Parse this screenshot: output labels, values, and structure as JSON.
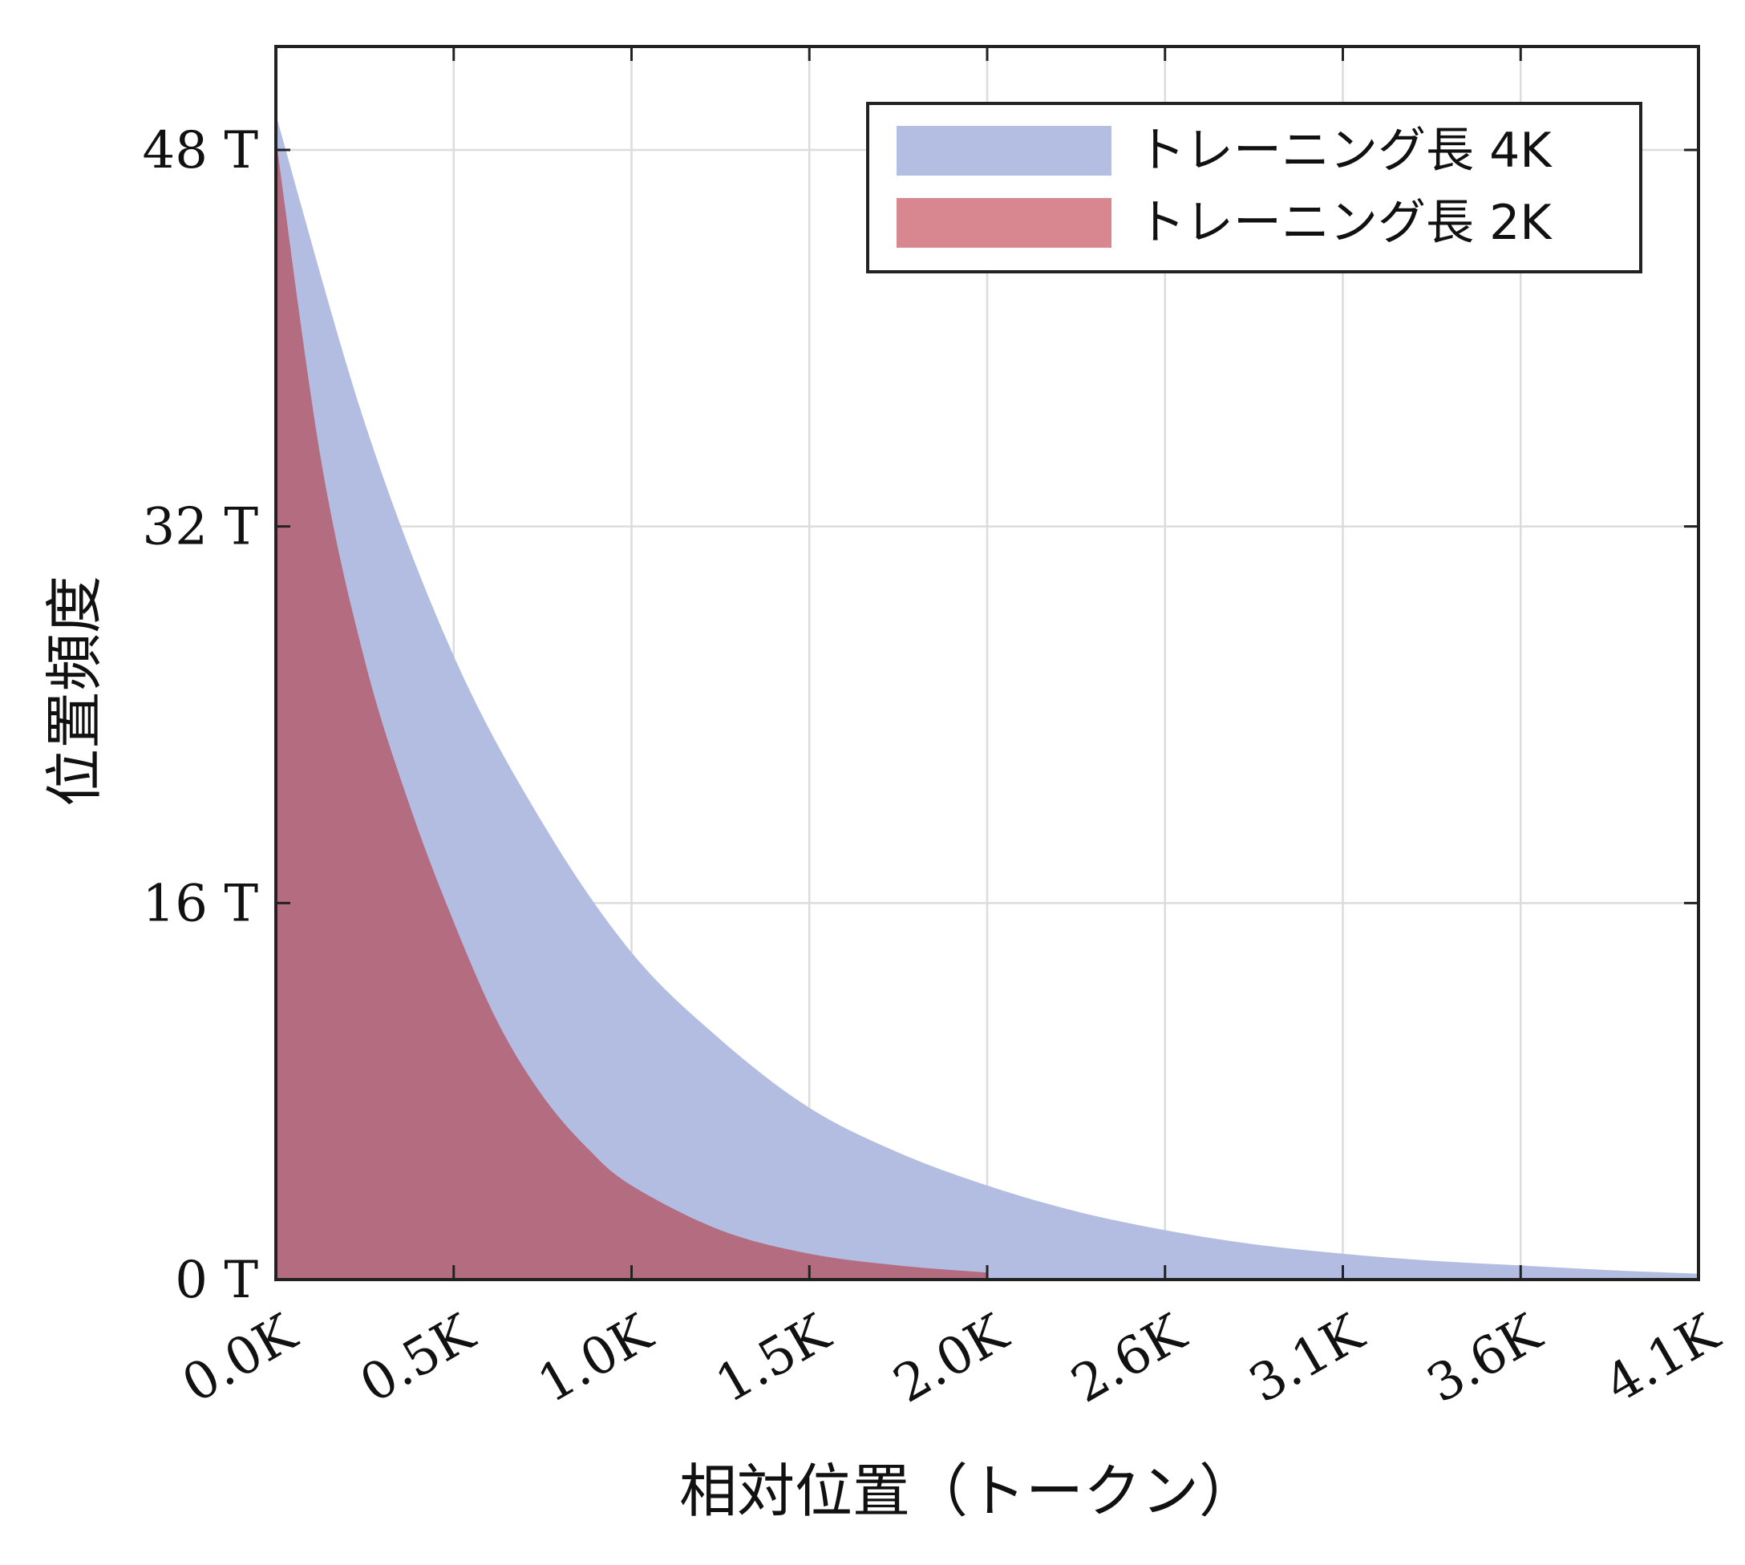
{
  "chart_data": {
    "type": "area",
    "title": "",
    "xlabel": "相対位置（トークン）",
    "ylabel": "位置頻度",
    "xlim": [
      0,
      4096
    ],
    "ylim": [
      0,
      54
    ],
    "grid": true,
    "legend_position": "top-right",
    "x_ticks": [
      {
        "value": 0,
        "label": "0.0K"
      },
      {
        "value": 512,
        "label": "0.5K"
      },
      {
        "value": 1024,
        "label": "1.0K"
      },
      {
        "value": 1536,
        "label": "1.5K"
      },
      {
        "value": 2048,
        "label": "2.0K"
      },
      {
        "value": 2560,
        "label": "2.6K"
      },
      {
        "value": 3072,
        "label": "3.1K"
      },
      {
        "value": 3584,
        "label": "3.6K"
      },
      {
        "value": 4096,
        "label": "4.1K"
      }
    ],
    "y_ticks": [
      {
        "value": 0,
        "label": "0 T"
      },
      {
        "value": 16,
        "label": "16 T"
      },
      {
        "value": 32,
        "label": "32 T"
      },
      {
        "value": 48,
        "label": "48 T"
      }
    ],
    "series": [
      {
        "name": "トレーニング長 4K",
        "color": "#b3bde1",
        "legend_color": "#b4bde2",
        "points": [
          [
            0,
            49.5
          ],
          [
            256,
            36.4
          ],
          [
            512,
            26.5
          ],
          [
            768,
            19.4
          ],
          [
            1024,
            13.9
          ],
          [
            1280,
            10.2
          ],
          [
            1536,
            7.3
          ],
          [
            1792,
            5.4
          ],
          [
            2048,
            4.0
          ],
          [
            2304,
            2.9
          ],
          [
            2560,
            2.1
          ],
          [
            2816,
            1.5
          ],
          [
            3072,
            1.1
          ],
          [
            3328,
            0.8
          ],
          [
            3584,
            0.6
          ],
          [
            3840,
            0.4
          ],
          [
            4096,
            0.25
          ]
        ]
      },
      {
        "name": "トレーニング長 2K",
        "color": "#b46c80",
        "legend_color": "#d8868f",
        "points": [
          [
            0,
            48.5
          ],
          [
            128,
            35
          ],
          [
            256,
            26.3
          ],
          [
            384,
            20.2
          ],
          [
            512,
            15.2
          ],
          [
            640,
            10.9
          ],
          [
            768,
            7.8
          ],
          [
            896,
            5.6
          ],
          [
            1024,
            4.0
          ],
          [
            1280,
            2.1
          ],
          [
            1536,
            1.1
          ],
          [
            1792,
            0.6
          ],
          [
            2048,
            0.3
          ]
        ]
      }
    ]
  }
}
